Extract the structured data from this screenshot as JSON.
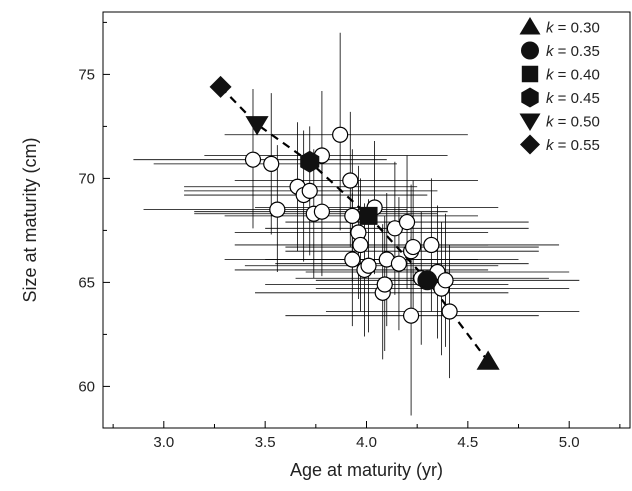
{
  "chart_data": {
    "type": "scatter",
    "xlabel": "Age at maturity (yr)",
    "ylabel": "Size at maturity (cm)",
    "xlim": [
      2.7,
      5.3
    ],
    "ylim": [
      58,
      78
    ],
    "xticks": [
      "3.0",
      "3.5",
      "4.0",
      "4.5",
      "5.0"
    ],
    "xtick_values": [
      3.0,
      3.5,
      4.0,
      4.5,
      5.0
    ],
    "yticks": [
      "60",
      "65",
      "70",
      "75"
    ],
    "ytick_values": [
      60,
      65,
      70,
      75
    ],
    "grid": false,
    "legend_position": "top-right",
    "observations": {
      "marker": "open-circle",
      "points": [
        {
          "x": 3.44,
          "y": 70.9,
          "x_lo": 2.85,
          "x_hi": 4.1,
          "y_lo": 67.6,
          "y_hi": 74.3
        },
        {
          "x": 3.53,
          "y": 70.7,
          "x_lo": 2.95,
          "x_hi": 4.15,
          "y_lo": 67.3,
          "y_hi": 74.1
        },
        {
          "x": 3.56,
          "y": 68.5,
          "x_lo": 2.9,
          "x_hi": 4.2,
          "y_lo": 65.5,
          "y_hi": 71.6
        },
        {
          "x": 3.66,
          "y": 69.6,
          "x_lo": 3.1,
          "x_hi": 4.25,
          "y_lo": 66.5,
          "y_hi": 72.7
        },
        {
          "x": 3.69,
          "y": 69.2,
          "x_lo": 3.1,
          "x_hi": 4.3,
          "y_lo": 66.0,
          "y_hi": 72.3
        },
        {
          "x": 3.72,
          "y": 69.4,
          "x_lo": 3.1,
          "x_hi": 4.35,
          "y_lo": 66.3,
          "y_hi": 72.5
        },
        {
          "x": 3.74,
          "y": 68.3,
          "x_lo": 3.15,
          "x_hi": 4.35,
          "y_lo": 65.2,
          "y_hi": 71.4
        },
        {
          "x": 3.78,
          "y": 71.1,
          "x_lo": 3.2,
          "x_hi": 4.4,
          "y_lo": 68.0,
          "y_hi": 74.2
        },
        {
          "x": 3.78,
          "y": 68.4,
          "x_lo": 3.15,
          "x_hi": 4.4,
          "y_lo": 65.3,
          "y_hi": 71.5
        },
        {
          "x": 3.87,
          "y": 72.1,
          "x_lo": 3.3,
          "x_hi": 4.5,
          "y_lo": 67.5,
          "y_hi": 77.0
        },
        {
          "x": 3.92,
          "y": 69.9,
          "x_lo": 3.35,
          "x_hi": 4.55,
          "y_lo": 66.7,
          "y_hi": 73.2
        },
        {
          "x": 3.93,
          "y": 68.2,
          "x_lo": 3.3,
          "x_hi": 4.55,
          "y_lo": 65.0,
          "y_hi": 71.4
        },
        {
          "x": 3.96,
          "y": 67.4,
          "x_lo": 3.35,
          "x_hi": 4.6,
          "y_lo": 64.2,
          "y_hi": 70.6
        },
        {
          "x": 3.97,
          "y": 66.8,
          "x_lo": 3.35,
          "x_hi": 4.6,
          "y_lo": 63.6,
          "y_hi": 70.0
        },
        {
          "x": 3.93,
          "y": 66.1,
          "x_lo": 3.3,
          "x_hi": 4.55,
          "y_lo": 62.9,
          "y_hi": 69.3
        },
        {
          "x": 3.99,
          "y": 65.6,
          "x_lo": 3.35,
          "x_hi": 4.6,
          "y_lo": 62.4,
          "y_hi": 68.8
        },
        {
          "x": 4.01,
          "y": 65.8,
          "x_lo": 3.4,
          "x_hi": 4.65,
          "y_lo": 62.6,
          "y_hi": 69.0
        },
        {
          "x": 4.04,
          "y": 68.6,
          "x_lo": 3.45,
          "x_hi": 4.65,
          "y_lo": 65.4,
          "y_hi": 71.8
        },
        {
          "x": 4.08,
          "y": 64.5,
          "x_lo": 3.45,
          "x_hi": 4.7,
          "y_lo": 61.3,
          "y_hi": 67.8
        },
        {
          "x": 4.09,
          "y": 64.9,
          "x_lo": 3.5,
          "x_hi": 4.7,
          "y_lo": 61.7,
          "y_hi": 68.2
        },
        {
          "x": 4.1,
          "y": 66.1,
          "x_lo": 3.5,
          "x_hi": 4.75,
          "y_lo": 62.9,
          "y_hi": 69.3
        },
        {
          "x": 4.14,
          "y": 67.6,
          "x_lo": 3.5,
          "x_hi": 4.8,
          "y_lo": 64.4,
          "y_hi": 70.8
        },
        {
          "x": 4.16,
          "y": 65.9,
          "x_lo": 3.55,
          "x_hi": 4.8,
          "y_lo": 62.7,
          "y_hi": 69.1
        },
        {
          "x": 4.2,
          "y": 67.9,
          "x_lo": 3.6,
          "x_hi": 4.8,
          "y_lo": 64.7,
          "y_hi": 71.1
        },
        {
          "x": 4.22,
          "y": 66.5,
          "x_lo": 3.6,
          "x_hi": 4.85,
          "y_lo": 63.3,
          "y_hi": 69.7
        },
        {
          "x": 4.23,
          "y": 66.7,
          "x_lo": 3.6,
          "x_hi": 4.85,
          "y_lo": 63.5,
          "y_hi": 69.9
        },
        {
          "x": 4.22,
          "y": 63.4,
          "x_lo": 3.6,
          "x_hi": 4.85,
          "y_lo": 58.6,
          "y_hi": 67.2
        },
        {
          "x": 4.27,
          "y": 65.2,
          "x_lo": 3.65,
          "x_hi": 4.9,
          "y_lo": 62.0,
          "y_hi": 68.4
        },
        {
          "x": 4.32,
          "y": 66.8,
          "x_lo": 3.7,
          "x_hi": 4.95,
          "y_lo": 63.6,
          "y_hi": 70.0
        },
        {
          "x": 4.35,
          "y": 65.5,
          "x_lo": 3.7,
          "x_hi": 5.0,
          "y_lo": 62.3,
          "y_hi": 68.7
        },
        {
          "x": 4.37,
          "y": 64.7,
          "x_lo": 3.75,
          "x_hi": 5.0,
          "y_lo": 61.5,
          "y_hi": 67.9
        },
        {
          "x": 4.39,
          "y": 65.1,
          "x_lo": 3.75,
          "x_hi": 5.05,
          "y_lo": 61.9,
          "y_hi": 68.3
        },
        {
          "x": 4.41,
          "y": 63.6,
          "x_lo": 3.8,
          "x_hi": 5.05,
          "y_lo": 60.4,
          "y_hi": 66.8
        }
      ]
    },
    "model_series": [
      {
        "name": "k = 0.30",
        "k_text": "k",
        "value_text": " = 0.30",
        "marker": "triangle-up",
        "x": 4.6,
        "y": 61.2
      },
      {
        "name": "k = 0.35",
        "k_text": "k",
        "value_text": " = 0.35",
        "marker": "circle",
        "x": 4.3,
        "y": 65.1
      },
      {
        "name": "k = 0.40",
        "k_text": "k",
        "value_text": " = 0.40",
        "marker": "square",
        "x": 4.01,
        "y": 68.2
      },
      {
        "name": "k = 0.45",
        "k_text": "k",
        "value_text": " = 0.45",
        "marker": "hexagon",
        "x": 3.72,
        "y": 70.8
      },
      {
        "name": "k = 0.50",
        "k_text": "k",
        "value_text": " = 0.50",
        "marker": "triangle-down",
        "x": 3.46,
        "y": 72.6
      },
      {
        "name": "k = 0.55",
        "k_text": "k",
        "value_text": " = 0.55",
        "marker": "diamond",
        "x": 3.28,
        "y": 74.4
      }
    ],
    "trend_line": {
      "style": "dashed",
      "x": [
        3.28,
        3.46,
        3.72,
        4.01,
        4.3,
        4.6
      ],
      "y": [
        74.4,
        72.6,
        70.8,
        68.2,
        65.1,
        61.2
      ]
    }
  }
}
